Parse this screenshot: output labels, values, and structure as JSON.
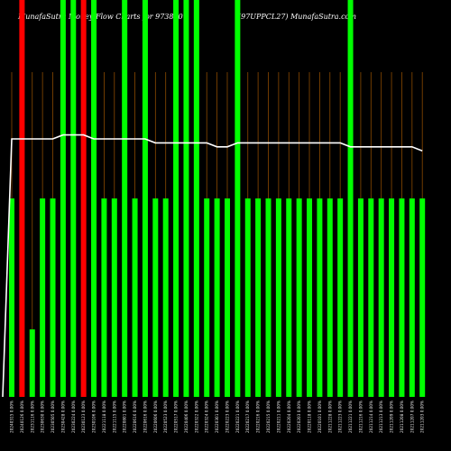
{
  "title_left": "MunafaSutra  Money  Flow  Charts for 973880",
  "title_right": "(97UPPCL27) MunafaSutra.com",
  "colors": {
    "background": "#000000",
    "buy_bar": "#00ff00",
    "sell_bar": "#ff0000",
    "grid_line": "#8b4a00",
    "price_line": "#ffffff"
  },
  "chart_data": {
    "type": "bar",
    "grid": "vertical",
    "ylim": [
      0,
      100
    ],
    "categories": [
      "20240315 0.00%",
      "20240126 0.00%",
      "20231116 0.00%",
      "20230630 0.00%",
      "20230505 0.00%",
      "20230428 0.00%",
      "20230224 0.00%",
      "20230123 0.00%",
      "20230106 0.00%",
      "20221118 0.00%",
      "20221115 0.00%",
      "20220801 0.00%",
      "20220616 0.00%",
      "20220616 0.00%",
      "20220606 0.00%",
      "20220523 0.00%",
      "20220517 0.00%",
      "20220406 0.00%",
      "20220322 0.00%",
      "20220324 0.00%",
      "20220301 0.00%",
      "20220223 0.00%",
      "20220221 0.00%",
      "20220217 0.00%",
      "20220216 0.00%",
      "20220215 0.00%",
      "20220211 0.00%",
      "20220204 0.00%",
      "20220203 0.00%",
      "20220118 0.00%",
      "20220101 0.00%",
      "20211228 0.00%",
      "20211223 0.00%",
      "20211221 0.00%",
      "20211216 0.00%",
      "20211214 0.00%",
      "20211213 0.00%",
      "20211209 0.00%",
      "20211208 0.00%",
      "20211207 0.00%",
      "20211203 0.00%"
    ],
    "values": [
      50,
      100,
      17,
      50,
      50,
      100,
      100,
      100,
      100,
      50,
      50,
      100,
      50,
      100,
      50,
      50,
      100,
      100,
      100,
      50,
      50,
      50,
      100,
      50,
      50,
      50,
      50,
      50,
      50,
      50,
      50,
      50,
      50,
      100,
      50,
      50,
      50,
      50,
      50,
      50,
      50
    ],
    "directions": [
      "buy",
      "sell",
      "buy",
      "buy",
      "buy",
      "buy",
      "buy",
      "sell",
      "buy",
      "buy",
      "buy",
      "buy",
      "buy",
      "buy",
      "buy",
      "buy",
      "buy",
      "buy",
      "buy",
      "buy",
      "buy",
      "buy",
      "buy",
      "buy",
      "buy",
      "buy",
      "buy",
      "buy",
      "buy",
      "buy",
      "buy",
      "buy",
      "buy",
      "buy",
      "buy",
      "buy",
      "buy",
      "buy",
      "buy",
      "buy",
      "buy"
    ],
    "price_line": [
      65,
      65,
      65,
      65,
      65,
      66,
      66,
      66,
      65,
      65,
      65,
      65,
      65,
      65,
      64,
      64,
      64,
      64,
      64,
      64,
      63,
      63,
      64,
      64,
      64,
      64,
      64,
      64,
      64,
      64,
      64,
      64,
      64,
      63,
      63,
      63,
      63,
      63,
      63,
      63,
      62
    ],
    "series": [
      {
        "name": "",
        "values": [
          65,
          65,
          65,
          65,
          65,
          66,
          66,
          66,
          65,
          65,
          65,
          65,
          65,
          65,
          64,
          64,
          64,
          64,
          64,
          64,
          63,
          63,
          64,
          64,
          64,
          64,
          64,
          64,
          64,
          64,
          64,
          64,
          64,
          63,
          63,
          63,
          63,
          63,
          63,
          63,
          62
        ]
      }
    ],
    "xlabel": "",
    "ylabel": ""
  }
}
